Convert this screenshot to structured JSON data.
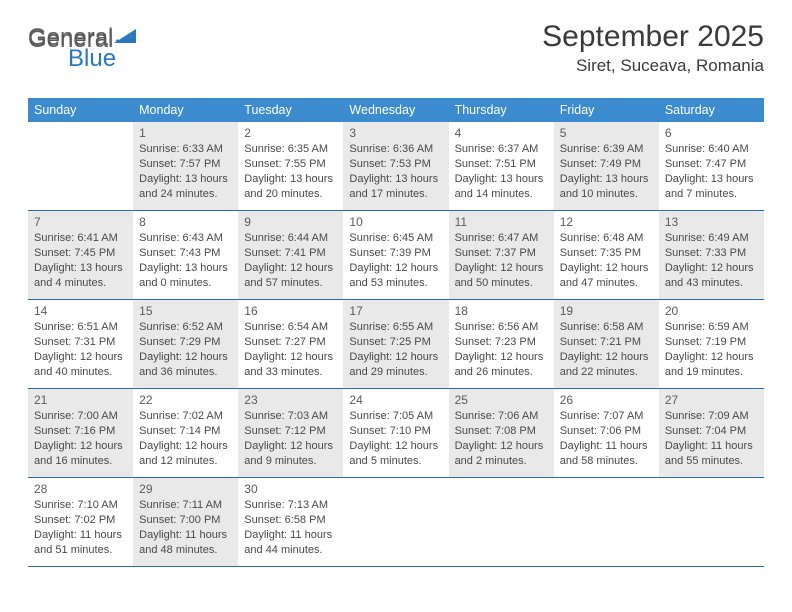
{
  "brand": {
    "part1": "General",
    "part2": "Blue"
  },
  "title": "September 2025",
  "location": "Siret, Suceava, Romania",
  "colors": {
    "header_bar": "#3b8bce",
    "week_border": "#2b6aa8",
    "shaded_cell": "#e9e9e9",
    "text": "#494949",
    "brand_grey": "#5a5a5a",
    "brand_blue": "#2b77c0",
    "page_bg": "#ffffff"
  },
  "fonts": {
    "family": "Arial",
    "month_title_size_pt": 22,
    "location_size_pt": 13,
    "dayname_size_pt": 9.5,
    "cell_size_pt": 8.3
  },
  "daynames": [
    "Sunday",
    "Monday",
    "Tuesday",
    "Wednesday",
    "Thursday",
    "Friday",
    "Saturday"
  ],
  "weeks": [
    [
      {
        "n": "",
        "empty": true,
        "shaded": false
      },
      {
        "n": "1",
        "shaded": true,
        "sunrise": "Sunrise: 6:33 AM",
        "sunset": "Sunset: 7:57 PM",
        "daylight": "Daylight: 13 hours and 24 minutes."
      },
      {
        "n": "2",
        "shaded": false,
        "sunrise": "Sunrise: 6:35 AM",
        "sunset": "Sunset: 7:55 PM",
        "daylight": "Daylight: 13 hours and 20 minutes."
      },
      {
        "n": "3",
        "shaded": true,
        "sunrise": "Sunrise: 6:36 AM",
        "sunset": "Sunset: 7:53 PM",
        "daylight": "Daylight: 13 hours and 17 minutes."
      },
      {
        "n": "4",
        "shaded": false,
        "sunrise": "Sunrise: 6:37 AM",
        "sunset": "Sunset: 7:51 PM",
        "daylight": "Daylight: 13 hours and 14 minutes."
      },
      {
        "n": "5",
        "shaded": true,
        "sunrise": "Sunrise: 6:39 AM",
        "sunset": "Sunset: 7:49 PM",
        "daylight": "Daylight: 13 hours and 10 minutes."
      },
      {
        "n": "6",
        "shaded": false,
        "sunrise": "Sunrise: 6:40 AM",
        "sunset": "Sunset: 7:47 PM",
        "daylight": "Daylight: 13 hours and 7 minutes."
      }
    ],
    [
      {
        "n": "7",
        "shaded": true,
        "sunrise": "Sunrise: 6:41 AM",
        "sunset": "Sunset: 7:45 PM",
        "daylight": "Daylight: 13 hours and 4 minutes."
      },
      {
        "n": "8",
        "shaded": false,
        "sunrise": "Sunrise: 6:43 AM",
        "sunset": "Sunset: 7:43 PM",
        "daylight": "Daylight: 13 hours and 0 minutes."
      },
      {
        "n": "9",
        "shaded": true,
        "sunrise": "Sunrise: 6:44 AM",
        "sunset": "Sunset: 7:41 PM",
        "daylight": "Daylight: 12 hours and 57 minutes."
      },
      {
        "n": "10",
        "shaded": false,
        "sunrise": "Sunrise: 6:45 AM",
        "sunset": "Sunset: 7:39 PM",
        "daylight": "Daylight: 12 hours and 53 minutes."
      },
      {
        "n": "11",
        "shaded": true,
        "sunrise": "Sunrise: 6:47 AM",
        "sunset": "Sunset: 7:37 PM",
        "daylight": "Daylight: 12 hours and 50 minutes."
      },
      {
        "n": "12",
        "shaded": false,
        "sunrise": "Sunrise: 6:48 AM",
        "sunset": "Sunset: 7:35 PM",
        "daylight": "Daylight: 12 hours and 47 minutes."
      },
      {
        "n": "13",
        "shaded": true,
        "sunrise": "Sunrise: 6:49 AM",
        "sunset": "Sunset: 7:33 PM",
        "daylight": "Daylight: 12 hours and 43 minutes."
      }
    ],
    [
      {
        "n": "14",
        "shaded": false,
        "sunrise": "Sunrise: 6:51 AM",
        "sunset": "Sunset: 7:31 PM",
        "daylight": "Daylight: 12 hours and 40 minutes."
      },
      {
        "n": "15",
        "shaded": true,
        "sunrise": "Sunrise: 6:52 AM",
        "sunset": "Sunset: 7:29 PM",
        "daylight": "Daylight: 12 hours and 36 minutes."
      },
      {
        "n": "16",
        "shaded": false,
        "sunrise": "Sunrise: 6:54 AM",
        "sunset": "Sunset: 7:27 PM",
        "daylight": "Daylight: 12 hours and 33 minutes."
      },
      {
        "n": "17",
        "shaded": true,
        "sunrise": "Sunrise: 6:55 AM",
        "sunset": "Sunset: 7:25 PM",
        "daylight": "Daylight: 12 hours and 29 minutes."
      },
      {
        "n": "18",
        "shaded": false,
        "sunrise": "Sunrise: 6:56 AM",
        "sunset": "Sunset: 7:23 PM",
        "daylight": "Daylight: 12 hours and 26 minutes."
      },
      {
        "n": "19",
        "shaded": true,
        "sunrise": "Sunrise: 6:58 AM",
        "sunset": "Sunset: 7:21 PM",
        "daylight": "Daylight: 12 hours and 22 minutes."
      },
      {
        "n": "20",
        "shaded": false,
        "sunrise": "Sunrise: 6:59 AM",
        "sunset": "Sunset: 7:19 PM",
        "daylight": "Daylight: 12 hours and 19 minutes."
      }
    ],
    [
      {
        "n": "21",
        "shaded": true,
        "sunrise": "Sunrise: 7:00 AM",
        "sunset": "Sunset: 7:16 PM",
        "daylight": "Daylight: 12 hours and 16 minutes."
      },
      {
        "n": "22",
        "shaded": false,
        "sunrise": "Sunrise: 7:02 AM",
        "sunset": "Sunset: 7:14 PM",
        "daylight": "Daylight: 12 hours and 12 minutes."
      },
      {
        "n": "23",
        "shaded": true,
        "sunrise": "Sunrise: 7:03 AM",
        "sunset": "Sunset: 7:12 PM",
        "daylight": "Daylight: 12 hours and 9 minutes."
      },
      {
        "n": "24",
        "shaded": false,
        "sunrise": "Sunrise: 7:05 AM",
        "sunset": "Sunset: 7:10 PM",
        "daylight": "Daylight: 12 hours and 5 minutes."
      },
      {
        "n": "25",
        "shaded": true,
        "sunrise": "Sunrise: 7:06 AM",
        "sunset": "Sunset: 7:08 PM",
        "daylight": "Daylight: 12 hours and 2 minutes."
      },
      {
        "n": "26",
        "shaded": false,
        "sunrise": "Sunrise: 7:07 AM",
        "sunset": "Sunset: 7:06 PM",
        "daylight": "Daylight: 11 hours and 58 minutes."
      },
      {
        "n": "27",
        "shaded": true,
        "sunrise": "Sunrise: 7:09 AM",
        "sunset": "Sunset: 7:04 PM",
        "daylight": "Daylight: 11 hours and 55 minutes."
      }
    ],
    [
      {
        "n": "28",
        "shaded": false,
        "sunrise": "Sunrise: 7:10 AM",
        "sunset": "Sunset: 7:02 PM",
        "daylight": "Daylight: 11 hours and 51 minutes."
      },
      {
        "n": "29",
        "shaded": true,
        "sunrise": "Sunrise: 7:11 AM",
        "sunset": "Sunset: 7:00 PM",
        "daylight": "Daylight: 11 hours and 48 minutes."
      },
      {
        "n": "30",
        "shaded": false,
        "sunrise": "Sunrise: 7:13 AM",
        "sunset": "Sunset: 6:58 PM",
        "daylight": "Daylight: 11 hours and 44 minutes."
      },
      {
        "n": "",
        "empty": true,
        "shaded": false
      },
      {
        "n": "",
        "empty": true,
        "shaded": false
      },
      {
        "n": "",
        "empty": true,
        "shaded": false
      },
      {
        "n": "",
        "empty": true,
        "shaded": false
      }
    ]
  ]
}
